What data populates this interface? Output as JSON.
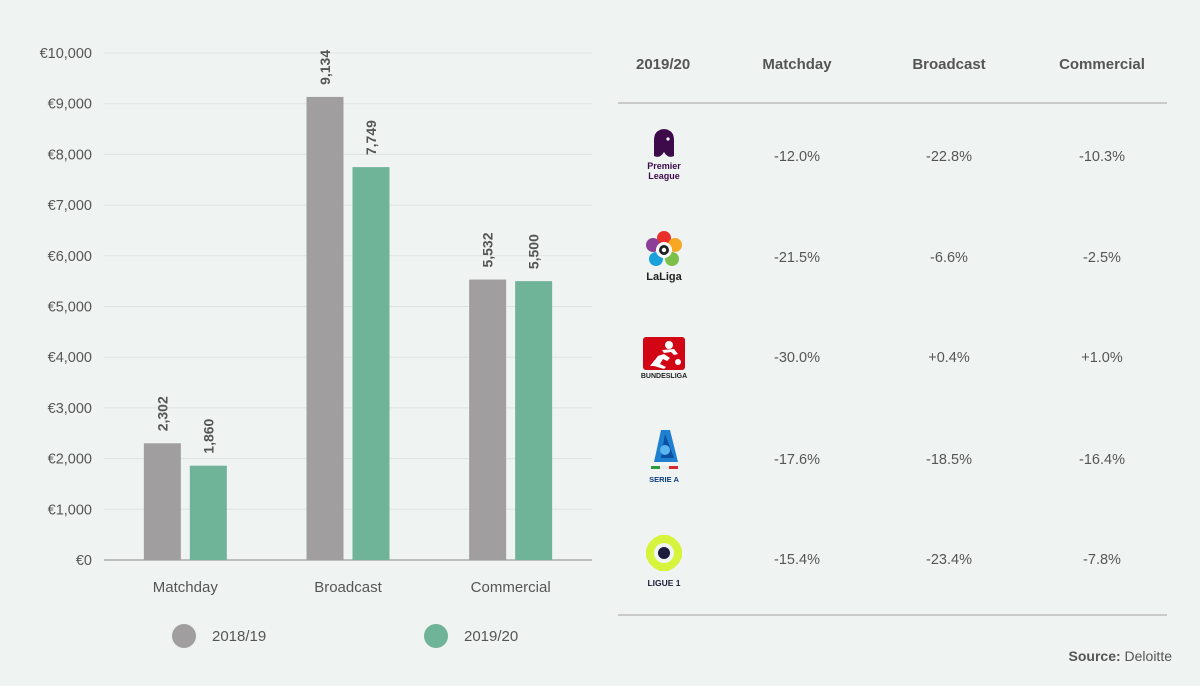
{
  "chart_data": {
    "type": "bar",
    "categories": [
      "Matchday",
      "Broadcast",
      "Commercial"
    ],
    "series": [
      {
        "name": "2018/19",
        "values": [
          2302,
          9134,
          5532
        ],
        "color": "#a09e9e"
      },
      {
        "name": "2019/20",
        "values": [
          1860,
          7749,
          5500
        ],
        "color": "#6fb399"
      }
    ],
    "value_labels": {
      "2018/19": [
        "2,302",
        "9,134",
        "5,532"
      ],
      "2019/20": [
        "1,860",
        "7,749",
        "5,500"
      ]
    },
    "yticks": [
      "€0",
      "€1,000",
      "€2,000",
      "€3,000",
      "€4,000",
      "€5,000",
      "€6,000",
      "€7,000",
      "€8,000",
      "€9,000",
      "€10,000"
    ],
    "ylim": [
      0,
      10000
    ],
    "grid": true,
    "legend": "bottom",
    "title": "",
    "xlabel": "",
    "ylabel": ""
  },
  "legend": {
    "items": [
      {
        "label": "2018/19",
        "color": "#a09e9e"
      },
      {
        "label": "2019/20",
        "color": "#6fb399"
      }
    ]
  },
  "table": {
    "headers": [
      "2019/20",
      "Matchday",
      "Broadcast",
      "Commercial"
    ],
    "rows": [
      {
        "league_logo": "premier-league-logo",
        "logo_text": "Premier League",
        "values": [
          "-12.0%",
          "-22.8%",
          "-10.3%"
        ]
      },
      {
        "league_logo": "laliga-logo",
        "logo_text": "LaLiga",
        "values": [
          "-21.5%",
          "-6.6%",
          "-2.5%"
        ]
      },
      {
        "league_logo": "bundesliga-logo",
        "logo_text": "BUNDESLIGA",
        "values": [
          "-30.0%",
          "+0.4%",
          "+1.0%"
        ]
      },
      {
        "league_logo": "serie-a-logo",
        "logo_text": "SERIE A",
        "values": [
          "-17.6%",
          "-18.5%",
          "-16.4%"
        ]
      },
      {
        "league_logo": "ligue-1-logo",
        "logo_text": "LIGUE 1",
        "values": [
          "-15.4%",
          "-23.4%",
          "-7.8%"
        ]
      }
    ]
  },
  "source": {
    "label": "Source:",
    "value": "Deloitte"
  }
}
